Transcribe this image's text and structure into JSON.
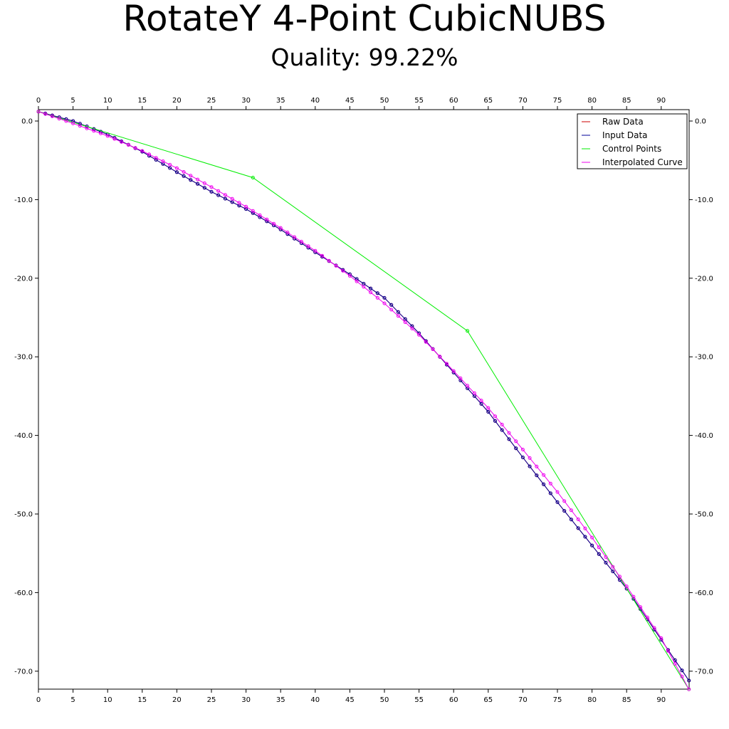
{
  "chart_data": {
    "type": "line",
    "title": "RotateY 4-Point CubicNUBS",
    "subtitle": "Quality: 99.22%",
    "xlabel": "",
    "ylabel": "",
    "xlim": [
      0,
      94
    ],
    "ylim": [
      -72.5,
      1.5
    ],
    "x_ticks": [
      0,
      5,
      10,
      15,
      20,
      25,
      30,
      35,
      40,
      45,
      50,
      55,
      60,
      65,
      70,
      75,
      80,
      85,
      90
    ],
    "x_tick_labels": [
      "0",
      "5",
      "10",
      "15",
      "20",
      "25",
      "30",
      "35",
      "40",
      "45",
      "50",
      "55",
      "60",
      "65",
      "70",
      "75",
      "80",
      "85",
      "90"
    ],
    "y_ticks": [
      0,
      -10,
      -20,
      -30,
      -40,
      -50,
      -60,
      -70
    ],
    "y_tick_labels": [
      "0.0",
      "-10.0",
      "-20.0",
      "-30.0",
      "-40.0",
      "-50.0",
      "-60.0",
      "-70.0"
    ],
    "grid": false,
    "legend_position": "top-right",
    "series": [
      {
        "name": "Raw Data",
        "color": "#cc0000",
        "markers": true,
        "key": "input"
      },
      {
        "name": "Input Data",
        "color": "#000099",
        "markers": true,
        "key": "input"
      },
      {
        "name": "Control Points",
        "color": "#00ee00",
        "markers": true,
        "x": [
          0,
          31,
          62,
          94
        ],
        "y": [
          1.2,
          -7.2,
          -26.7,
          -72.3
        ]
      },
      {
        "name": "Interpolated Curve",
        "color": "#ee00ee",
        "markers": true,
        "key": "interp"
      }
    ],
    "input_anchors": {
      "x": [
        0,
        5,
        10,
        15,
        20,
        25,
        30,
        35,
        40,
        45,
        50,
        55,
        60,
        65,
        70,
        75,
        80,
        85,
        90,
        94
      ],
      "y": [
        1.2,
        0.0,
        -1.7,
        -3.9,
        -6.5,
        -9.0,
        -11.2,
        -13.8,
        -16.7,
        -19.5,
        -22.5,
        -27.0,
        -32.0,
        -37.0,
        -42.8,
        -48.5,
        -54.0,
        -59.5,
        -66.0,
        -71.2
      ]
    },
    "interp_anchors": {
      "x": [
        0,
        5,
        10,
        15,
        20,
        25,
        30,
        35,
        40,
        45,
        50,
        55,
        60,
        65,
        70,
        75,
        80,
        85,
        90,
        94
      ],
      "y": [
        1.2,
        -0.3,
        -1.9,
        -3.8,
        -6.0,
        -8.4,
        -10.9,
        -13.6,
        -16.5,
        -19.7,
        -23.2,
        -27.2,
        -31.8,
        -36.5,
        -41.8,
        -47.2,
        -53.0,
        -59.2,
        -65.8,
        -72.3
      ]
    }
  }
}
